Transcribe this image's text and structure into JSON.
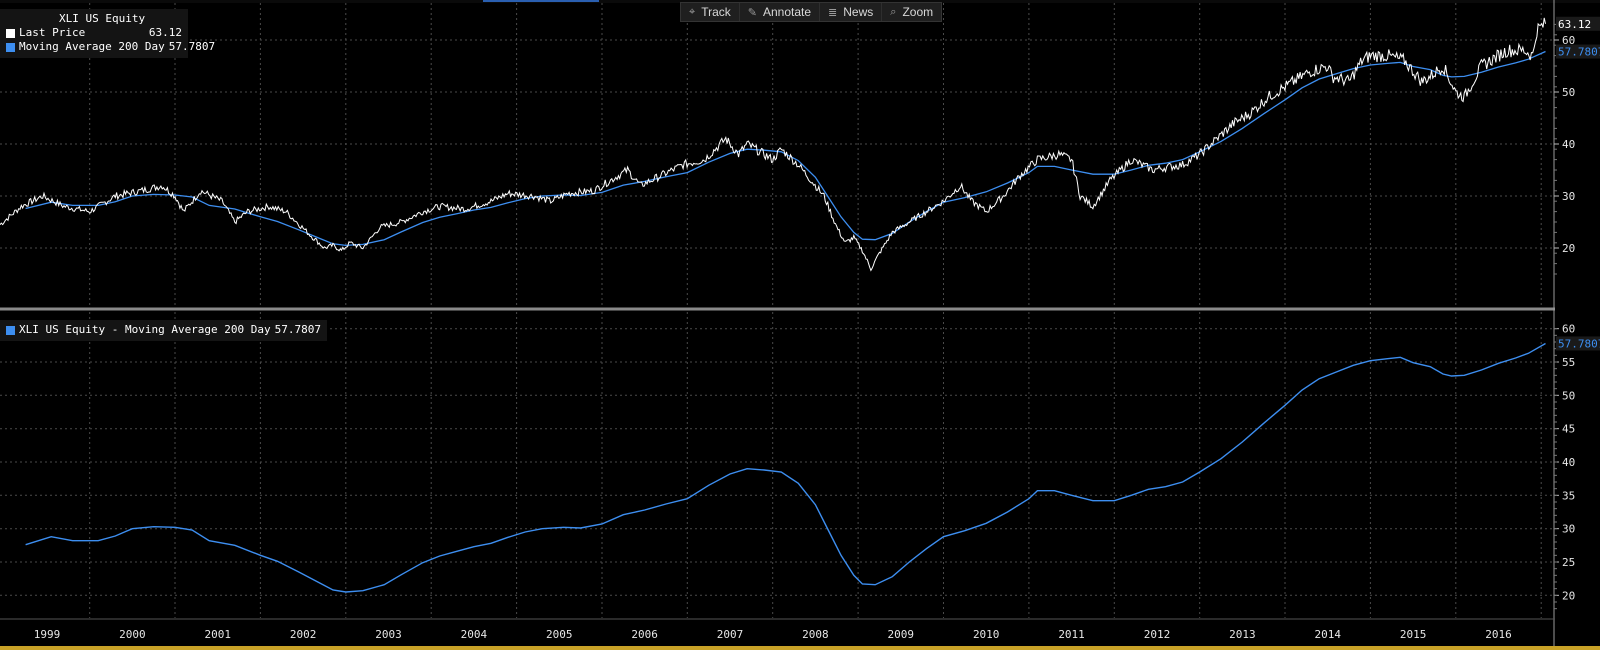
{
  "toolbar": {
    "items": [
      {
        "label": "Track",
        "icon": "crosshair-icon"
      },
      {
        "label": "Annotate",
        "icon": "pencil-icon"
      },
      {
        "label": "News",
        "icon": "news-icon"
      },
      {
        "label": "Zoom",
        "icon": "magnifier-icon"
      }
    ]
  },
  "legend_top": {
    "title": "XLI US Equity",
    "last_price_label": "Last Price",
    "last_price_value": "63.12",
    "ma_label": "Moving Average 200 Day",
    "ma_value": "57.7807"
  },
  "legend_bottom": {
    "label": "XLI US Equity - Moving Average 200 Day",
    "value": "57.7807"
  },
  "colors": {
    "background": "#000000",
    "price": "#ffffff",
    "moving_average": "#3d8ef0",
    "grid": "#4a4a4a",
    "label_box": "#1a1a1a"
  },
  "chart_data": [
    {
      "type": "line",
      "title": "XLI US Equity",
      "series": [
        {
          "name": "Last Price",
          "color": "#ffffff",
          "points": [
            [
              1998.95,
              24.5
            ],
            [
              1999.2,
              28
            ],
            [
              1999.45,
              30
            ],
            [
              1999.7,
              28
            ],
            [
              2000.0,
              27
            ],
            [
              2000.3,
              30
            ],
            [
              2000.6,
              31
            ],
            [
              2000.85,
              32
            ],
            [
              2001.0,
              30
            ],
            [
              2001.1,
              27
            ],
            [
              2001.3,
              31
            ],
            [
              2001.55,
              29
            ],
            [
              2001.7,
              25
            ],
            [
              2001.85,
              27
            ],
            [
              2002.1,
              28
            ],
            [
              2002.3,
              27
            ],
            [
              2002.55,
              23
            ],
            [
              2002.75,
              20
            ],
            [
              2002.85,
              20.5
            ],
            [
              2002.95,
              19.5
            ],
            [
              2003.05,
              21
            ],
            [
              2003.2,
              20
            ],
            [
              2003.4,
              24
            ],
            [
              2003.65,
              25
            ],
            [
              2003.9,
              27
            ],
            [
              2004.1,
              28
            ],
            [
              2004.4,
              27.5
            ],
            [
              2004.7,
              29
            ],
            [
              2004.9,
              30.5
            ],
            [
              2005.2,
              30
            ],
            [
              2005.4,
              29
            ],
            [
              2005.6,
              30.5
            ],
            [
              2005.9,
              31
            ],
            [
              2006.1,
              33
            ],
            [
              2006.3,
              35
            ],
            [
              2006.45,
              32
            ],
            [
              2006.7,
              34
            ],
            [
              2006.95,
              36
            ],
            [
              2007.2,
              37
            ],
            [
              2007.45,
              41
            ],
            [
              2007.6,
              38
            ],
            [
              2007.7,
              40
            ],
            [
              2007.9,
              38
            ],
            [
              2008.0,
              37
            ],
            [
              2008.1,
              39
            ],
            [
              2008.3,
              36
            ],
            [
              2008.45,
              33
            ],
            [
              2008.6,
              30
            ],
            [
              2008.75,
              24
            ],
            [
              2008.85,
              21
            ],
            [
              2008.95,
              22
            ],
            [
              2009.05,
              19.5
            ],
            [
              2009.15,
              16
            ],
            [
              2009.25,
              19
            ],
            [
              2009.4,
              23
            ],
            [
              2009.6,
              25
            ],
            [
              2009.8,
              27
            ],
            [
              2010.0,
              29
            ],
            [
              2010.2,
              32
            ],
            [
              2010.33,
              29
            ],
            [
              2010.5,
              27
            ],
            [
              2010.7,
              30
            ],
            [
              2010.9,
              34
            ],
            [
              2011.1,
              37
            ],
            [
              2011.35,
              38
            ],
            [
              2011.5,
              37
            ],
            [
              2011.6,
              30
            ],
            [
              2011.75,
              28
            ],
            [
              2011.95,
              33
            ],
            [
              2012.2,
              37
            ],
            [
              2012.45,
              35
            ],
            [
              2012.6,
              35.5
            ],
            [
              2012.8,
              36
            ],
            [
              2013.0,
              38
            ],
            [
              2013.2,
              41
            ],
            [
              2013.4,
              44
            ],
            [
              2013.6,
              46
            ],
            [
              2013.8,
              49
            ],
            [
              2014.0,
              51
            ],
            [
              2014.1,
              52
            ],
            [
              2014.3,
              54
            ],
            [
              2014.5,
              55
            ],
            [
              2014.55,
              53
            ],
            [
              2014.75,
              52
            ],
            [
              2014.9,
              56
            ],
            [
              2015.0,
              57
            ],
            [
              2015.2,
              57
            ],
            [
              2015.4,
              56
            ],
            [
              2015.6,
              52
            ],
            [
              2015.7,
              53
            ],
            [
              2015.85,
              55
            ],
            [
              2016.0,
              50
            ],
            [
              2016.1,
              49
            ],
            [
              2016.3,
              55
            ],
            [
              2016.5,
              57
            ],
            [
              2016.6,
              58
            ],
            [
              2016.8,
              58
            ],
            [
              2016.9,
              57
            ],
            [
              2016.95,
              62
            ],
            [
              2017.05,
              63.12
            ]
          ]
        },
        {
          "name": "Moving Average 200 Day",
          "color": "#3d8ef0",
          "points": [
            [
              1999.25,
              27.6
            ],
            [
              1999.55,
              28.8
            ],
            [
              1999.8,
              28.2
            ],
            [
              2000.1,
              28.2
            ],
            [
              2000.3,
              28.9
            ],
            [
              2000.5,
              30.0
            ],
            [
              2000.75,
              30.3
            ],
            [
              2001.0,
              30.2
            ],
            [
              2001.2,
              29.8
            ],
            [
              2001.4,
              28.2
            ],
            [
              2001.7,
              27.5
            ],
            [
              2002.0,
              26.0
            ],
            [
              2002.2,
              25.1
            ],
            [
              2002.45,
              23.5
            ],
            [
              2002.7,
              21.8
            ],
            [
              2002.85,
              20.8
            ],
            [
              2003.0,
              20.5
            ],
            [
              2003.2,
              20.7
            ],
            [
              2003.45,
              21.6
            ],
            [
              2003.65,
              23.1
            ],
            [
              2003.9,
              24.9
            ],
            [
              2004.1,
              25.9
            ],
            [
              2004.3,
              26.6
            ],
            [
              2004.5,
              27.3
            ],
            [
              2004.7,
              27.8
            ],
            [
              2004.9,
              28.7
            ],
            [
              2005.1,
              29.5
            ],
            [
              2005.3,
              30.0
            ],
            [
              2005.55,
              30.2
            ],
            [
              2005.75,
              30.1
            ],
            [
              2006.0,
              30.7
            ],
            [
              2006.25,
              32.1
            ],
            [
              2006.5,
              32.8
            ],
            [
              2006.75,
              33.7
            ],
            [
              2007.0,
              34.5
            ],
            [
              2007.25,
              36.5
            ],
            [
              2007.5,
              38.2
            ],
            [
              2007.7,
              39.0
            ],
            [
              2007.9,
              38.8
            ],
            [
              2008.1,
              38.5
            ],
            [
              2008.3,
              36.8
            ],
            [
              2008.5,
              33.6
            ],
            [
              2008.65,
              29.8
            ],
            [
              2008.8,
              26.0
            ],
            [
              2008.95,
              23.0
            ],
            [
              2009.05,
              21.7
            ],
            [
              2009.2,
              21.6
            ],
            [
              2009.4,
              22.8
            ],
            [
              2009.6,
              25.0
            ],
            [
              2009.8,
              27.0
            ],
            [
              2010.0,
              28.8
            ],
            [
              2010.25,
              29.7
            ],
            [
              2010.5,
              30.8
            ],
            [
              2010.75,
              32.5
            ],
            [
              2011.0,
              34.5
            ],
            [
              2011.1,
              35.7
            ],
            [
              2011.3,
              35.7
            ],
            [
              2011.5,
              35.0
            ],
            [
              2011.75,
              34.2
            ],
            [
              2012.0,
              34.2
            ],
            [
              2012.2,
              35.0
            ],
            [
              2012.4,
              35.9
            ],
            [
              2012.6,
              36.3
            ],
            [
              2012.8,
              37.0
            ],
            [
              2013.0,
              38.5
            ],
            [
              2013.25,
              40.5
            ],
            [
              2013.5,
              43.0
            ],
            [
              2013.75,
              45.8
            ],
            [
              2014.0,
              48.5
            ],
            [
              2014.2,
              50.8
            ],
            [
              2014.4,
              52.5
            ],
            [
              2014.6,
              53.5
            ],
            [
              2014.8,
              54.5
            ],
            [
              2015.0,
              55.2
            ],
            [
              2015.2,
              55.5
            ],
            [
              2015.35,
              55.7
            ],
            [
              2015.5,
              54.9
            ],
            [
              2015.7,
              54.3
            ],
            [
              2015.85,
              53.2
            ],
            [
              2015.95,
              52.9
            ],
            [
              2016.1,
              53.0
            ],
            [
              2016.3,
              53.8
            ],
            [
              2016.5,
              54.8
            ],
            [
              2016.7,
              55.6
            ],
            [
              2016.85,
              56.3
            ],
            [
              2017.05,
              57.7807
            ]
          ]
        }
      ],
      "y_ticks": [
        20,
        30,
        40,
        50,
        60
      ],
      "ylim": [
        10,
        65
      ],
      "price_tag": "63.12",
      "ma_tag": "57.7807",
      "grid": true,
      "legend_position": "top-left"
    },
    {
      "type": "line",
      "title": "XLI US Equity - Moving Average 200 Day",
      "series_ref": "Moving Average 200 Day",
      "y_ticks": [
        20,
        25,
        30,
        35,
        40,
        45,
        50,
        55,
        60
      ],
      "ylim": [
        17.5,
        61
      ],
      "ma_tag": "57.7807",
      "grid": true,
      "legend_position": "top-left"
    }
  ],
  "x_axis": {
    "labels": [
      "1999",
      "2000",
      "2001",
      "2002",
      "2003",
      "2004",
      "2005",
      "2006",
      "2007",
      "2008",
      "2009",
      "2010",
      "2011",
      "2012",
      "2013",
      "2014",
      "2015",
      "2016"
    ],
    "xlim": [
      1998.95,
      2017.15
    ]
  }
}
